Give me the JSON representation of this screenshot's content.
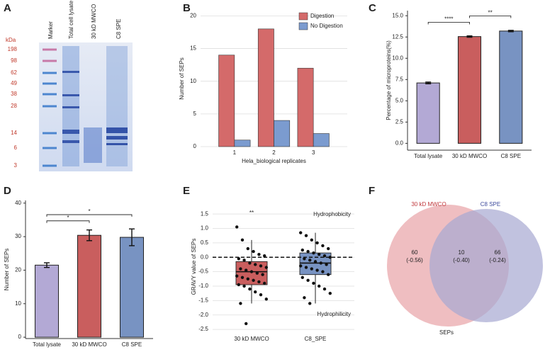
{
  "chart_data": [
    {
      "panel": "A",
      "type": "gel",
      "lanes": [
        "Marker",
        "Total cell lysate",
        "30 kD MWCO",
        "C8 SPE"
      ],
      "unit": "kDa",
      "markers": [
        198,
        98,
        62,
        49,
        38,
        28,
        14,
        6,
        3
      ]
    },
    {
      "panel": "B",
      "type": "bar",
      "categories": [
        "1",
        "2",
        "3"
      ],
      "series": [
        {
          "name": "Digestion",
          "color": "#d46a6a",
          "values": [
            14,
            18,
            12
          ]
        },
        {
          "name": "No Digestion",
          "color": "#7b9bcf",
          "values": [
            1,
            4,
            2
          ]
        }
      ],
      "xlabel": "Hela_biological replicates",
      "ylabel": "Number of SEPs",
      "ylim": [
        0,
        20.8
      ],
      "yticks": [
        0,
        5,
        10,
        15,
        20
      ],
      "grid": true,
      "legend": "top-right"
    },
    {
      "panel": "C",
      "type": "bar",
      "categories": [
        "Total lysate",
        "30 kD MWCO",
        "C8 SPE"
      ],
      "values": [
        7.1,
        12.55,
        13.2
      ],
      "errors": [
        0.1,
        0.08,
        0.08
      ],
      "colors": [
        "#b3a9d5",
        "#c95e5e",
        "#7893c2"
      ],
      "ylabel": "Percentage of microproteins(%)",
      "ylim": [
        -0.8,
        15.6
      ],
      "yticks": [
        {
          "value": 0,
          "label": "0.0"
        },
        2.5,
        {
          "value": 5,
          "label": "5.0"
        },
        7.5,
        {
          "value": 10,
          "label": "10.0"
        },
        12.5,
        {
          "value": 15,
          "label": "15.0"
        }
      ],
      "grid": false,
      "comparisons": [
        {
          "pair": [
            0,
            1
          ],
          "label": "****"
        },
        {
          "pair": [
            1,
            2
          ],
          "label": "**"
        }
      ]
    },
    {
      "panel": "D",
      "type": "bar",
      "categories": [
        "Total lysate",
        "30 kD MWCO",
        "C8 SPE"
      ],
      "values": [
        21.5,
        30.4,
        29.8
      ],
      "errors": [
        0.7,
        1.6,
        2.5
      ],
      "colors": [
        "#b3a9d5",
        "#c95e5e",
        "#7893c2"
      ],
      "ylabel": "Number of SEPs",
      "ylim": [
        -0.4,
        40.8
      ],
      "yticks": [
        0,
        10,
        20,
        30,
        40
      ],
      "grid": false,
      "comparisons": [
        {
          "pair": [
            0,
            1
          ],
          "label": "*"
        },
        {
          "pair": [
            0,
            2
          ],
          "label": "*"
        }
      ]
    },
    {
      "panel": "E",
      "type": "box",
      "categories": [
        "30 kD MWCO",
        "C8_SPE"
      ],
      "colors": [
        "#c95e5e",
        "#7893c2"
      ],
      "boxes": [
        {
          "whisker_low": -1.6,
          "q1": -0.95,
          "median": -0.5,
          "q3": -0.15,
          "whisker_high": 0.6
        },
        {
          "whisker_low": -1.6,
          "q1": -0.6,
          "median": -0.2,
          "q3": 0.15,
          "whisker_high": 0.85
        }
      ],
      "points": [
        [
          1.05,
          0.6,
          0.3,
          0.2,
          0.1,
          0.05,
          -0.05,
          -0.1,
          -0.2,
          -0.25,
          -0.3,
          -0.35,
          -0.4,
          -0.45,
          -0.5,
          -0.55,
          -0.6,
          -0.65,
          -0.7,
          -0.75,
          -0.8,
          -0.85,
          -0.9,
          -0.95,
          -1.0,
          -1.1,
          -1.2,
          -1.3,
          -1.45,
          -1.6,
          -2.3
        ],
        [
          0.85,
          0.75,
          0.6,
          0.5,
          0.4,
          0.3,
          0.25,
          0.2,
          0.15,
          0.1,
          0.05,
          0.0,
          -0.05,
          -0.1,
          -0.15,
          -0.2,
          -0.25,
          -0.3,
          -0.35,
          -0.4,
          -0.45,
          -0.5,
          -0.6,
          -0.7,
          -0.8,
          -0.9,
          -1.0,
          -1.1,
          -1.25,
          -1.4,
          -1.6
        ]
      ],
      "hline": 0,
      "ylabel": "GRAVY value of SEPs",
      "ylim": [
        -2.62,
        1.97
      ],
      "yticks": [
        -2.5,
        {
          "value": -2,
          "label": "-2.0"
        },
        -1.5,
        {
          "value": -1,
          "label": "-1.0"
        },
        -0.5,
        {
          "value": 0,
          "label": "0.0"
        },
        0.5,
        {
          "value": 1,
          "label": "1.0"
        },
        1.5
      ],
      "grid": true,
      "significance": "**",
      "upper_note": "Hydrophobicity",
      "lower_note": "Hydrophilicity"
    },
    {
      "panel": "F",
      "type": "venn",
      "sets": [
        {
          "name": "30 kD MWCO",
          "color": "#e8a3a6",
          "label_color": "#c0393d"
        },
        {
          "name": "C8 SPE",
          "color": "#a7a8d2",
          "label_color": "#3d4a9c"
        }
      ],
      "values": [
        60,
        10,
        66
      ],
      "notes": [
        "(-0.56)",
        "(-0.40)",
        "(-0.24)"
      ],
      "xlabel": "SEPs"
    }
  ]
}
